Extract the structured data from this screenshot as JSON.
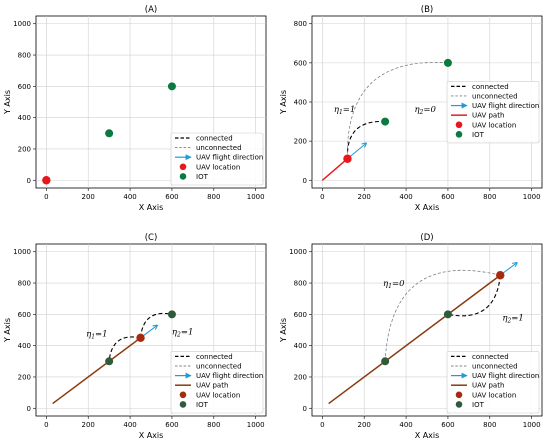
{
  "colors": {
    "uav_location": "#e8161d",
    "uav_location_dark": "#a52a0f",
    "iot": "#0a7a3e",
    "iot_dark": "#2e5c3a",
    "uav_path": "#e81d1d",
    "uav_path_brown": "#8a3a10",
    "flight_direction": "#1f9bd6",
    "connected": "#000000",
    "unconnected": "#808080"
  },
  "chart_data": [
    {
      "type": "scatter",
      "title": "(A)",
      "xlabel": "X Axis",
      "ylabel": "Y Axis",
      "xlim": [
        0,
        1000
      ],
      "ylim": [
        0,
        1000
      ],
      "xticks": [
        0,
        200,
        400,
        600,
        800,
        1000
      ],
      "yticks": [
        0,
        200,
        400,
        600,
        800,
        1000
      ],
      "grid": true,
      "legend_position": "lower-right",
      "legend": [
        "connected",
        "unconnected",
        "UAV flight direction",
        "UAV location",
        "IOT"
      ],
      "uav_location": [
        0,
        0
      ],
      "iot": [
        [
          300,
          300
        ],
        [
          600,
          600
        ]
      ],
      "uav_path": [],
      "arrow": null,
      "connections": [],
      "annotations": []
    },
    {
      "type": "scatter",
      "title": "(B)",
      "xlabel": "X Axis",
      "ylabel": "Y Axis",
      "xlim": [
        0,
        1000
      ],
      "ylim": [
        0,
        800
      ],
      "xticks": [
        0,
        200,
        400,
        600,
        800,
        1000
      ],
      "yticks": [
        0,
        200,
        400,
        600,
        800
      ],
      "grid": true,
      "legend_position": "right",
      "legend": [
        "connected",
        "unconnected",
        "UAV flight direction",
        "UAV path",
        "UAV location",
        "IOT"
      ],
      "uav_location": [
        120,
        110
      ],
      "iot": [
        [
          300,
          300
        ],
        [
          600,
          600
        ]
      ],
      "uav_path": [
        [
          0,
          0
        ],
        [
          120,
          110
        ]
      ],
      "arrow": [
        [
          120,
          110
        ],
        [
          210,
          190
        ]
      ],
      "connections": [
        {
          "kind": "connected",
          "from": [
            120,
            110
          ],
          "to": [
            300,
            300
          ],
          "bend": -0.55
        },
        {
          "kind": "unconnected",
          "from": [
            120,
            110
          ],
          "to": [
            600,
            600
          ],
          "bend": -0.55
        }
      ],
      "annotations": [
        {
          "symbol": "η",
          "sub": "1",
          "text": "=1",
          "at": [
            55,
            350
          ]
        },
        {
          "symbol": "η",
          "sub": "2",
          "text": "=0",
          "at": [
            440,
            350
          ]
        }
      ]
    },
    {
      "type": "scatter",
      "title": "(C)",
      "xlabel": "X Axis",
      "ylabel": "Y Axis",
      "xlim": [
        0,
        1000
      ],
      "ylim": [
        0,
        1000
      ],
      "xticks": [
        0,
        200,
        400,
        600,
        800,
        1000
      ],
      "yticks": [
        0,
        200,
        400,
        600,
        800,
        1000
      ],
      "grid": true,
      "legend_position": "lower-right",
      "legend": [
        "connected",
        "unconnected",
        "UAV flight direction",
        "UAV path",
        "UAV location",
        "IOT"
      ],
      "uav_location": [
        450,
        450
      ],
      "iot": [
        [
          300,
          300
        ],
        [
          600,
          600
        ]
      ],
      "uav_path": [
        [
          30,
          30
        ],
        [
          450,
          450
        ]
      ],
      "arrow": [
        [
          450,
          450
        ],
        [
          530,
          530
        ]
      ],
      "connections": [
        {
          "kind": "connected",
          "from": [
            450,
            450
          ],
          "to": [
            300,
            300
          ],
          "bend": 0.55
        },
        {
          "kind": "connected",
          "from": [
            450,
            450
          ],
          "to": [
            600,
            600
          ],
          "bend": -0.55
        }
      ],
      "annotations": [
        {
          "symbol": "η",
          "sub": "1",
          "text": "=1",
          "at": [
            190,
            460
          ]
        },
        {
          "symbol": "η",
          "sub": "2",
          "text": "=1",
          "at": [
            600,
            470
          ]
        }
      ]
    },
    {
      "type": "scatter",
      "title": "(D)",
      "xlabel": "X Axis",
      "ylabel": "Y Axis",
      "xlim": [
        0,
        1000
      ],
      "ylim": [
        0,
        1000
      ],
      "xticks": [
        0,
        200,
        400,
        600,
        800,
        1000
      ],
      "yticks": [
        0,
        200,
        400,
        600,
        800,
        1000
      ],
      "grid": true,
      "legend_position": "lower-right",
      "legend": [
        "connected",
        "unconnected",
        "UAV flight direction",
        "UAV path",
        "UAV location",
        "IOT"
      ],
      "uav_location": [
        850,
        850
      ],
      "iot": [
        [
          300,
          300
        ],
        [
          600,
          600
        ]
      ],
      "uav_path": [
        [
          30,
          30
        ],
        [
          850,
          850
        ]
      ],
      "arrow": [
        [
          850,
          850
        ],
        [
          930,
          930
        ]
      ],
      "connections": [
        {
          "kind": "unconnected",
          "from": [
            850,
            850
          ],
          "to": [
            300,
            300
          ],
          "bend": 0.6
        },
        {
          "kind": "connected",
          "from": [
            850,
            850
          ],
          "to": [
            600,
            600
          ],
          "bend": -0.55
        }
      ],
      "annotations": [
        {
          "symbol": "η",
          "sub": "1",
          "text": "=0",
          "at": [
            290,
            780
          ]
        },
        {
          "symbol": "η",
          "sub": "2",
          "text": "=1",
          "at": [
            860,
            560
          ]
        }
      ]
    }
  ]
}
